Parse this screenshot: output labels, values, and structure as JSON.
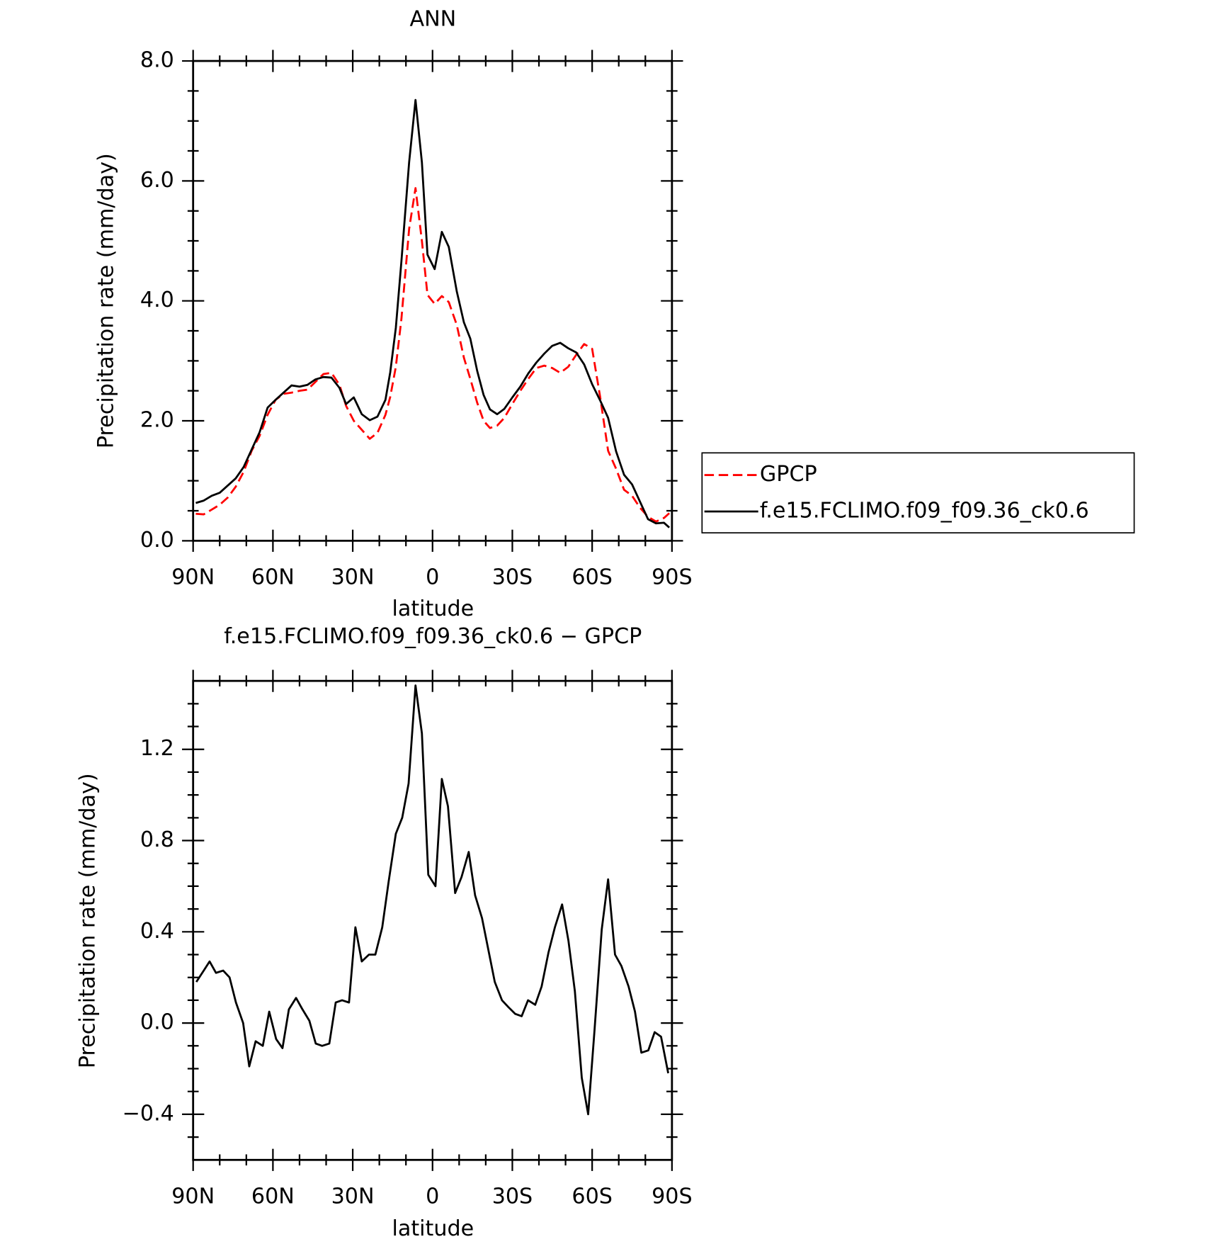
{
  "chart_data": [
    {
      "type": "line",
      "title": "ANN",
      "xlabel": "latitude",
      "ylabel": "Precipitation rate (mm/day)",
      "x": [
        89,
        86,
        83,
        80,
        77,
        74,
        71,
        68,
        65,
        62,
        59,
        56,
        53,
        50,
        47,
        44,
        41,
        38,
        35,
        32.5,
        29.6,
        26.6,
        23.6,
        20.7,
        17.7,
        15.9,
        13.8,
        11.7,
        8.8,
        6.4,
        4.0,
        1.9,
        -0.8,
        -3.5,
        -6.1,
        -9.1,
        -11.8,
        -14.2,
        -16.8,
        -19.2,
        -21.6,
        -24.3,
        -27,
        -30,
        -33,
        -36,
        -39,
        -42,
        -45,
        -48,
        -51,
        -54,
        -57,
        -60,
        -63,
        -66,
        -69,
        -72,
        -75,
        -78,
        -81,
        -84,
        -87,
        -89
      ],
      "series": [
        {
          "name": "GPCP",
          "color": "#ff0000",
          "line_style": "dashed",
          "values": [
            0.45,
            0.44,
            0.52,
            0.6,
            0.72,
            0.9,
            1.15,
            1.5,
            1.75,
            2.1,
            2.35,
            2.45,
            2.47,
            2.5,
            2.52,
            2.65,
            2.78,
            2.8,
            2.6,
            2.25,
            2.0,
            1.85,
            1.7,
            1.8,
            2.1,
            2.4,
            2.9,
            3.7,
            5.2,
            5.88,
            5.0,
            4.1,
            3.95,
            4.08,
            3.98,
            3.6,
            3.05,
            2.7,
            2.3,
            2.0,
            1.88,
            1.92,
            2.05,
            2.28,
            2.5,
            2.7,
            2.88,
            2.92,
            2.88,
            2.8,
            2.9,
            3.1,
            3.28,
            3.2,
            2.4,
            1.5,
            1.2,
            0.85,
            0.75,
            0.55,
            0.4,
            0.32,
            0.38,
            0.46
          ]
        },
        {
          "name": "f.e15.FCLIMO.f09_f09.36_ck0.6",
          "color": "#000000",
          "line_style": "solid",
          "values": [
            0.63,
            0.67,
            0.75,
            0.8,
            0.92,
            1.04,
            1.23,
            1.52,
            1.81,
            2.22,
            2.35,
            2.47,
            2.59,
            2.57,
            2.6,
            2.69,
            2.73,
            2.72,
            2.55,
            2.28,
            2.39,
            2.11,
            2.01,
            2.07,
            2.35,
            2.81,
            3.55,
            4.66,
            6.31,
            7.35,
            6.31,
            4.77,
            4.53,
            5.15,
            4.9,
            4.16,
            3.64,
            3.37,
            2.83,
            2.43,
            2.19,
            2.11,
            2.2,
            2.39,
            2.57,
            2.79,
            2.97,
            3.12,
            3.25,
            3.3,
            3.21,
            3.14,
            2.94,
            2.61,
            2.34,
            2.05,
            1.49,
            1.1,
            0.94,
            0.65,
            0.36,
            0.29,
            0.3,
            0.22
          ]
        }
      ],
      "xlim": [
        90,
        -90
      ],
      "xticks": [
        {
          "value": 90,
          "label": "90N"
        },
        {
          "value": 60,
          "label": "60N"
        },
        {
          "value": 30,
          "label": "30N"
        },
        0,
        {
          "value": -30,
          "label": "30S"
        },
        {
          "value": -60,
          "label": "60S"
        },
        {
          "value": -90,
          "label": "90S"
        }
      ],
      "xminorticks": [
        80,
        70,
        50,
        40,
        20,
        10,
        -10,
        -20,
        -40,
        -50,
        -70,
        -80
      ],
      "ylim": [
        0,
        8
      ],
      "yticks": [
        {
          "value": 0,
          "label": "0.0"
        },
        {
          "value": 2,
          "label": "2.0"
        },
        {
          "value": 4,
          "label": "4.0"
        },
        {
          "value": 6,
          "label": "6.0"
        },
        {
          "value": 8,
          "label": "8.0"
        }
      ],
      "yminorticks": [
        0.5,
        1,
        1.5,
        2.5,
        3,
        3.5,
        4.5,
        5,
        5.5,
        6.5,
        7,
        7.5
      ],
      "legend": "right"
    },
    {
      "type": "line",
      "title": "f.e15.FCLIMO.f09_f09.36_ck0.6 − GPCP",
      "xlabel": "latitude",
      "ylabel": "Precipitation rate (mm/day)",
      "x": [
        88.8,
        86,
        83.8,
        81.4,
        78.7,
        76.3,
        73.9,
        71.2,
        68.9,
        66.5,
        63.8,
        61.4,
        58.8,
        56.4,
        54.0,
        51.3,
        48.9,
        46.3,
        43.9,
        41.5,
        38.8,
        36.4,
        34.0,
        31.4,
        29.0,
        26.6,
        23.9,
        21.5,
        18.9,
        16.5,
        13.8,
        11.4,
        9.0,
        6.4,
        4.0,
        1.6,
        -1.1,
        -3.5,
        -5.8,
        -8.5,
        -10.9,
        -13.6,
        -16.0,
        -18.6,
        -21.0,
        -23.4,
        -26.1,
        -28.5,
        -31.1,
        -33.5,
        -35.9,
        -38.6,
        -41.0,
        -43.6,
        -46.0,
        -48.7,
        -51.1,
        -53.5,
        -56.1,
        -58.5,
        -60.9,
        -63.6,
        -66.0,
        -68.6,
        -71.0,
        -73.7,
        -76.1,
        -78.5,
        -81.1,
        -83.5,
        -85.9,
        -88.6
      ],
      "values": [
        0.18,
        0.23,
        0.27,
        0.22,
        0.23,
        0.2,
        0.09,
        0.0,
        -0.19,
        -0.08,
        -0.1,
        0.05,
        -0.07,
        -0.11,
        0.06,
        0.11,
        0.06,
        0.01,
        -0.09,
        -0.1,
        -0.09,
        0.09,
        0.1,
        0.09,
        0.42,
        0.27,
        0.3,
        0.3,
        0.42,
        0.62,
        0.83,
        0.9,
        1.05,
        1.48,
        1.27,
        0.65,
        0.6,
        1.07,
        0.95,
        0.57,
        0.64,
        0.75,
        0.56,
        0.46,
        0.32,
        0.18,
        0.1,
        0.07,
        0.04,
        0.03,
        0.1,
        0.08,
        0.16,
        0.31,
        0.42,
        0.52,
        0.36,
        0.14,
        -0.24,
        -0.4,
        -0.03,
        0.41,
        0.63,
        0.3,
        0.25,
        0.16,
        0.05,
        -0.13,
        -0.12,
        -0.04,
        -0.06,
        -0.22
      ],
      "color": "#000000",
      "xlim": [
        90,
        -90
      ],
      "xticks": [
        {
          "value": 90,
          "label": "90N"
        },
        {
          "value": 60,
          "label": "60N"
        },
        {
          "value": 30,
          "label": "30N"
        },
        0,
        {
          "value": -30,
          "label": "30S"
        },
        {
          "value": -60,
          "label": "60S"
        },
        {
          "value": -90,
          "label": "90S"
        }
      ],
      "xminorticks": [
        80,
        70,
        50,
        40,
        20,
        10,
        -10,
        -20,
        -40,
        -50,
        -70,
        -80
      ],
      "ylim": [
        -0.6,
        1.5
      ],
      "yticks": [
        {
          "value": -0.4,
          "label": "−0.4"
        },
        {
          "value": 0,
          "label": "0.0"
        },
        {
          "value": 0.4,
          "label": "0.4"
        },
        {
          "value": 0.8,
          "label": "0.8"
        },
        {
          "value": 1.2,
          "label": "1.2"
        }
      ],
      "yminorticks": [
        -0.5,
        -0.3,
        -0.2,
        -0.1,
        0.1,
        0.2,
        0.3,
        0.5,
        0.6,
        0.7,
        0.9,
        1.0,
        1.1,
        1.3,
        1.4
      ]
    }
  ]
}
